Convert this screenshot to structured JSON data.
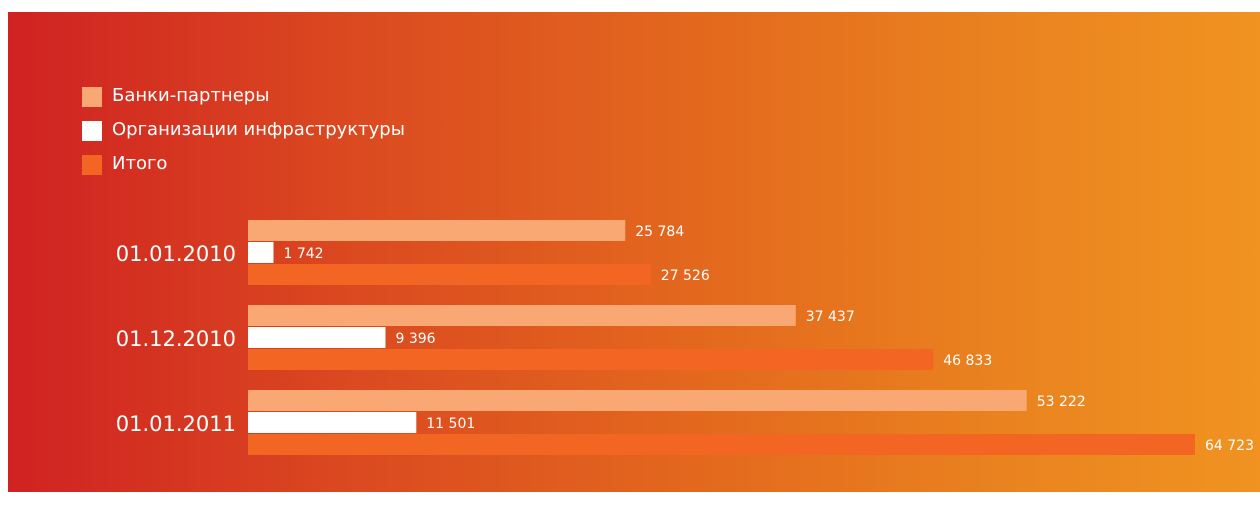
{
  "colors": {
    "banks": "#f9a874",
    "infrastructure": "#ffffff",
    "total": "#f26522",
    "background_left": "#d02222",
    "background_right": "#f09321"
  },
  "legend": {
    "items": [
      {
        "label": "Банки-партнеры",
        "color": "#f9a874"
      },
      {
        "label": "Организации инфраструктуры",
        "color": "#ffffff"
      },
      {
        "label": "Итого",
        "color": "#f26522"
      }
    ]
  },
  "chart_data": {
    "type": "bar",
    "orientation": "horizontal",
    "categories": [
      "01.01.2010",
      "01.12.2010",
      "01.01.2011"
    ],
    "series": [
      {
        "name": "Банки-партнеры",
        "values": [
          25784,
          37437,
          53222
        ],
        "labels": [
          "25 784",
          "37 437",
          "53 222"
        ]
      },
      {
        "name": "Организации инфраструктуры",
        "values": [
          1742,
          9396,
          11501
        ],
        "labels": [
          "1 742",
          "9 396",
          "11 501"
        ]
      },
      {
        "name": "Итого",
        "values": [
          27526,
          46833,
          64723
        ],
        "labels": [
          "27 526",
          "46 833",
          "64 723"
        ]
      }
    ],
    "title": "",
    "xlabel": "",
    "ylabel": "",
    "xlim": [
      0,
      66000
    ],
    "grid": false,
    "legend_position": "top-left"
  }
}
